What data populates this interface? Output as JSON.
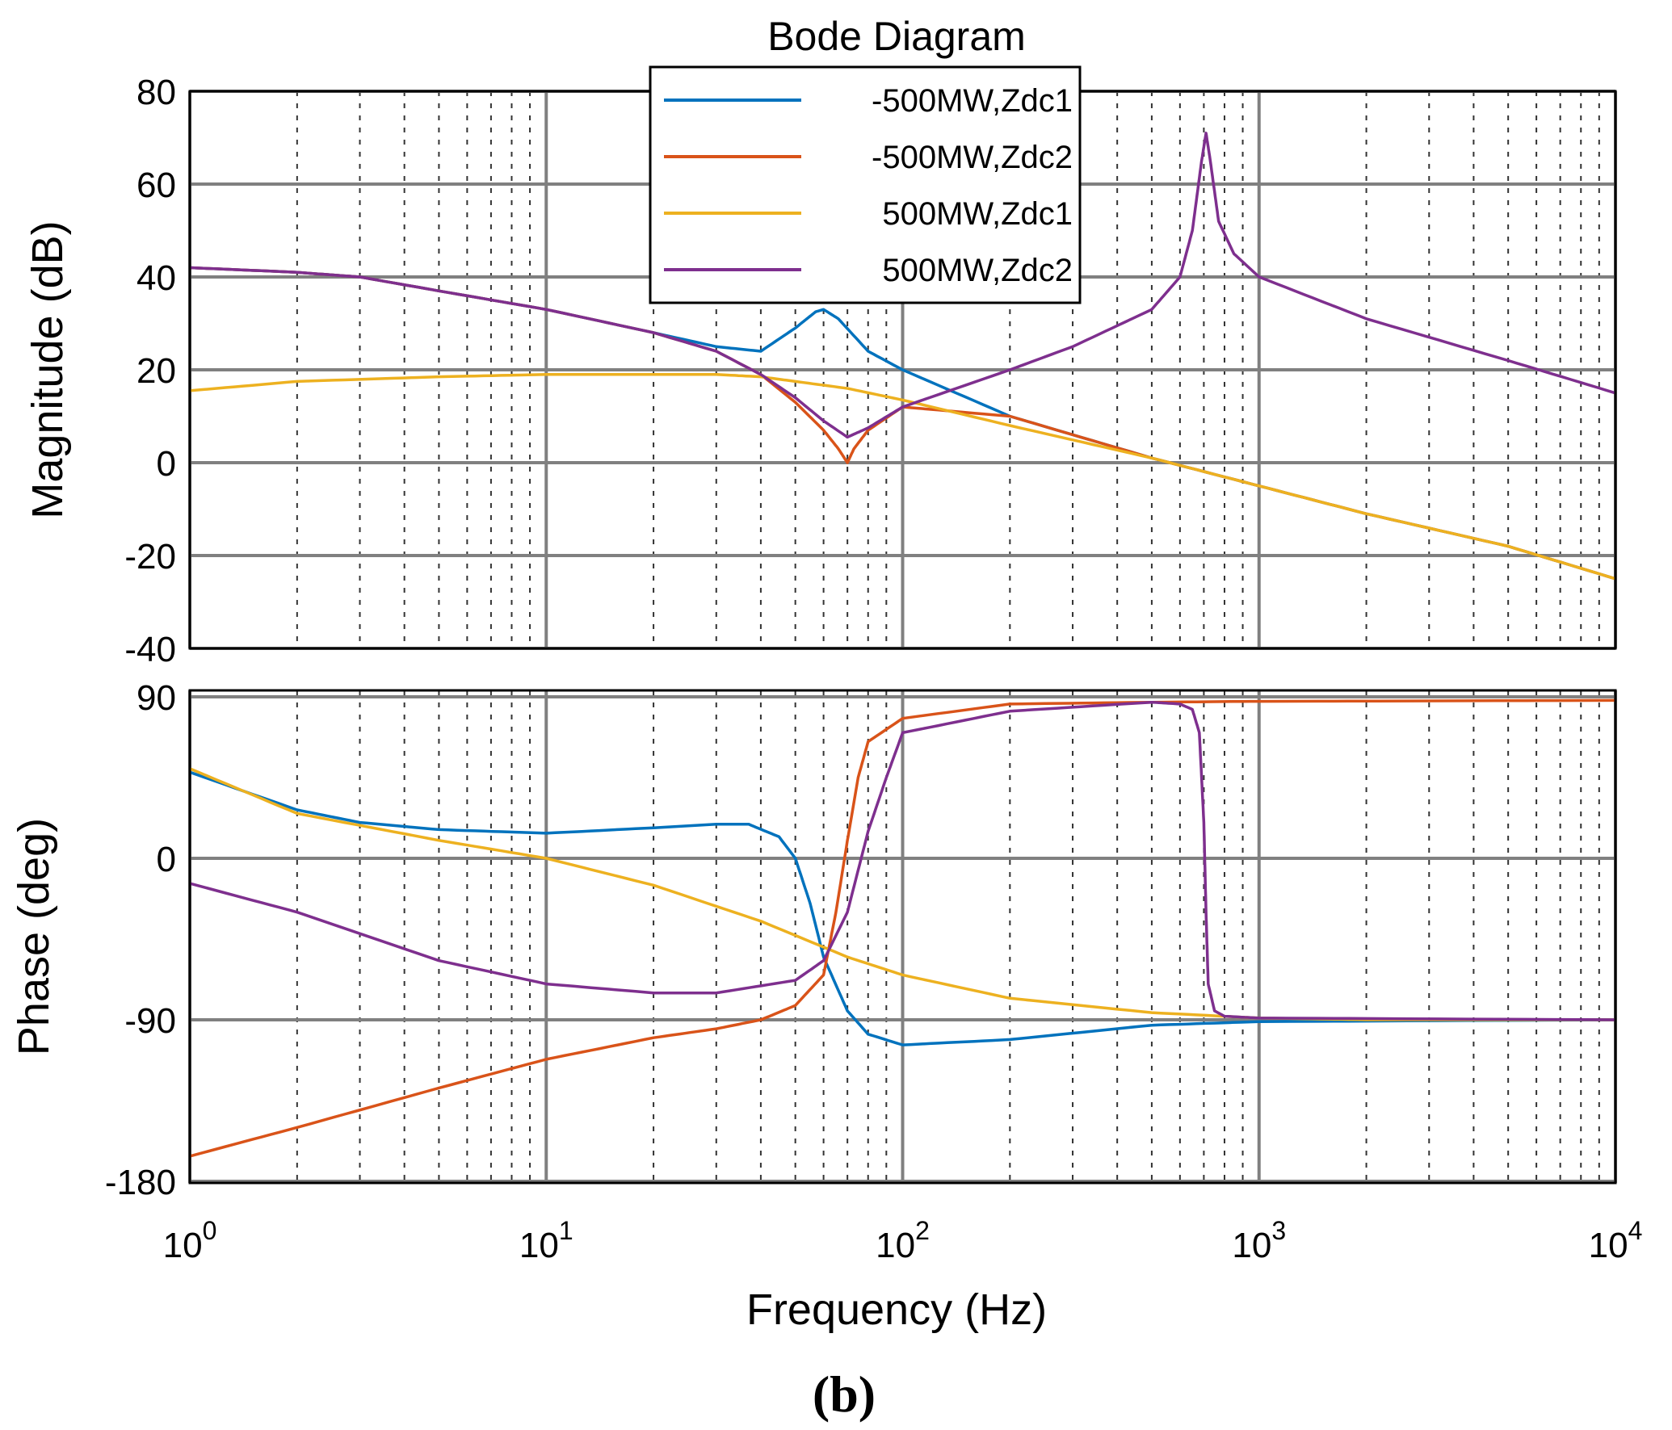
{
  "chart_data": {
    "type": "line",
    "title": "Bode Diagram",
    "panel_label": "(b)",
    "xlabel": "Frequency  (Hz)",
    "xscale": "log",
    "xlim": [
      1,
      10000
    ],
    "x_tick_labels": [
      {
        "base": "10",
        "exp": "0"
      },
      {
        "base": "10",
        "exp": "1"
      },
      {
        "base": "10",
        "exp": "2"
      },
      {
        "base": "10",
        "exp": "3"
      },
      {
        "base": "10",
        "exp": "4"
      }
    ],
    "legend": {
      "placement": "top-center",
      "entries": [
        "-500MW,Zdc1",
        "-500MW,Zdc2",
        " 500MW,Zdc1",
        " 500MW,Zdc2"
      ]
    },
    "series_colors": [
      "#0072BD",
      "#D95319",
      "#EDB120",
      "#7E2F8E"
    ],
    "magnitude": {
      "ylabel": "Magnitude (dB)",
      "ylim": [
        -40,
        80
      ],
      "yticks": [
        "80",
        "60",
        "40",
        "20",
        "0",
        "-20",
        "-40"
      ],
      "series": [
        {
          "name": "-500MW,Zdc1",
          "points": [
            [
              1,
              42
            ],
            [
              2,
              41
            ],
            [
              3,
              40
            ],
            [
              5,
              37
            ],
            [
              10,
              33
            ],
            [
              20,
              28
            ],
            [
              30,
              25
            ],
            [
              40,
              24
            ],
            [
              50,
              29
            ],
            [
              57,
              32.5
            ],
            [
              60,
              33
            ],
            [
              66,
              31
            ],
            [
              80,
              24
            ],
            [
              100,
              20
            ],
            [
              200,
              10
            ],
            [
              500,
              1
            ],
            [
              1000,
              -5
            ],
            [
              2000,
              -11
            ],
            [
              5000,
              -18
            ],
            [
              10000,
              -25
            ]
          ]
        },
        {
          "name": "-500MW,Zdc2",
          "points": [
            [
              1,
              42
            ],
            [
              2,
              41
            ],
            [
              3,
              40
            ],
            [
              5,
              37
            ],
            [
              10,
              33
            ],
            [
              20,
              28
            ],
            [
              30,
              24
            ],
            [
              40,
              19
            ],
            [
              50,
              13
            ],
            [
              60,
              7
            ],
            [
              66,
              3
            ],
            [
              70,
              0
            ],
            [
              73,
              3
            ],
            [
              80,
              7
            ],
            [
              100,
              12
            ],
            [
              200,
              10
            ],
            [
              500,
              1
            ],
            [
              1000,
              -5
            ],
            [
              2000,
              -11
            ],
            [
              5000,
              -18
            ],
            [
              10000,
              -25
            ]
          ]
        },
        {
          "name": " 500MW,Zdc1",
          "points": [
            [
              1,
              15.5
            ],
            [
              2,
              17.5
            ],
            [
              5,
              18.5
            ],
            [
              10,
              19
            ],
            [
              20,
              19
            ],
            [
              30,
              19
            ],
            [
              40,
              18.5
            ],
            [
              50,
              17.5
            ],
            [
              70,
              16
            ],
            [
              100,
              13.5
            ],
            [
              200,
              8
            ],
            [
              500,
              1
            ],
            [
              1000,
              -5
            ],
            [
              2000,
              -11
            ],
            [
              5000,
              -18
            ],
            [
              10000,
              -25
            ]
          ]
        },
        {
          "name": " 500MW,Zdc2",
          "points": [
            [
              1,
              42
            ],
            [
              2,
              41
            ],
            [
              3,
              40
            ],
            [
              5,
              37
            ],
            [
              10,
              33
            ],
            [
              20,
              28
            ],
            [
              30,
              24
            ],
            [
              40,
              19
            ],
            [
              50,
              14
            ],
            [
              60,
              9
            ],
            [
              70,
              5.5
            ],
            [
              80,
              7.5
            ],
            [
              100,
              12
            ],
            [
              200,
              20
            ],
            [
              300,
              25
            ],
            [
              500,
              33
            ],
            [
              600,
              40
            ],
            [
              650,
              50
            ],
            [
              690,
              65
            ],
            [
              710,
              71
            ],
            [
              730,
              65
            ],
            [
              770,
              52
            ],
            [
              850,
              45
            ],
            [
              1000,
              40
            ],
            [
              2000,
              31
            ],
            [
              5000,
              22
            ],
            [
              10000,
              15
            ]
          ]
        }
      ]
    },
    "phase": {
      "ylabel": "Phase (deg)",
      "ylim": [
        -180,
        90
      ],
      "yticks": [
        "90",
        "0",
        "-90",
        "-180"
      ],
      "series": [
        {
          "name": "-500MW,Zdc1",
          "points": [
            [
              1,
              48
            ],
            [
              2,
              27
            ],
            [
              3,
              20
            ],
            [
              5,
              16
            ],
            [
              10,
              14
            ],
            [
              20,
              17
            ],
            [
              30,
              19
            ],
            [
              37,
              19
            ],
            [
              45,
              12
            ],
            [
              50,
              0
            ],
            [
              55,
              -25
            ],
            [
              60,
              -55
            ],
            [
              70,
              -85
            ],
            [
              80,
              -98
            ],
            [
              100,
              -104
            ],
            [
              200,
              -101
            ],
            [
              500,
              -93
            ],
            [
              1000,
              -91
            ],
            [
              10000,
              -90
            ]
          ]
        },
        {
          "name": "-500MW,Zdc2",
          "points": [
            [
              1,
              -166
            ],
            [
              2,
              -150
            ],
            [
              5,
              -128
            ],
            [
              10,
              -112
            ],
            [
              20,
              -100
            ],
            [
              30,
              -95
            ],
            [
              40,
              -90
            ],
            [
              50,
              -82
            ],
            [
              60,
              -65
            ],
            [
              65,
              -30
            ],
            [
              70,
              10
            ],
            [
              75,
              45
            ],
            [
              80,
              65
            ],
            [
              100,
              78
            ],
            [
              200,
              86
            ],
            [
              500,
              87
            ],
            [
              1000,
              87.5
            ],
            [
              10000,
              88
            ]
          ]
        },
        {
          "name": " 500MW,Zdc1",
          "points": [
            [
              1,
              50
            ],
            [
              2,
              25
            ],
            [
              5,
              10
            ],
            [
              10,
              0
            ],
            [
              20,
              -15
            ],
            [
              40,
              -35
            ],
            [
              70,
              -55
            ],
            [
              100,
              -65
            ],
            [
              200,
              -78
            ],
            [
              500,
              -86
            ],
            [
              1000,
              -89
            ],
            [
              2000,
              -90
            ],
            [
              10000,
              -90
            ]
          ]
        },
        {
          "name": " 500MW,Zdc2",
          "points": [
            [
              1,
              -14
            ],
            [
              2,
              -30
            ],
            [
              5,
              -57
            ],
            [
              10,
              -70
            ],
            [
              20,
              -75
            ],
            [
              30,
              -75
            ],
            [
              50,
              -68
            ],
            [
              60,
              -57
            ],
            [
              70,
              -30
            ],
            [
              80,
              15
            ],
            [
              90,
              45
            ],
            [
              100,
              70
            ],
            [
              200,
              82
            ],
            [
              500,
              87
            ],
            [
              600,
              86
            ],
            [
              650,
              83
            ],
            [
              680,
              70
            ],
            [
              700,
              20
            ],
            [
              710,
              -30
            ],
            [
              720,
              -70
            ],
            [
              750,
              -85
            ],
            [
              800,
              -88
            ],
            [
              1000,
              -89
            ],
            [
              10000,
              -90
            ]
          ]
        }
      ]
    }
  }
}
